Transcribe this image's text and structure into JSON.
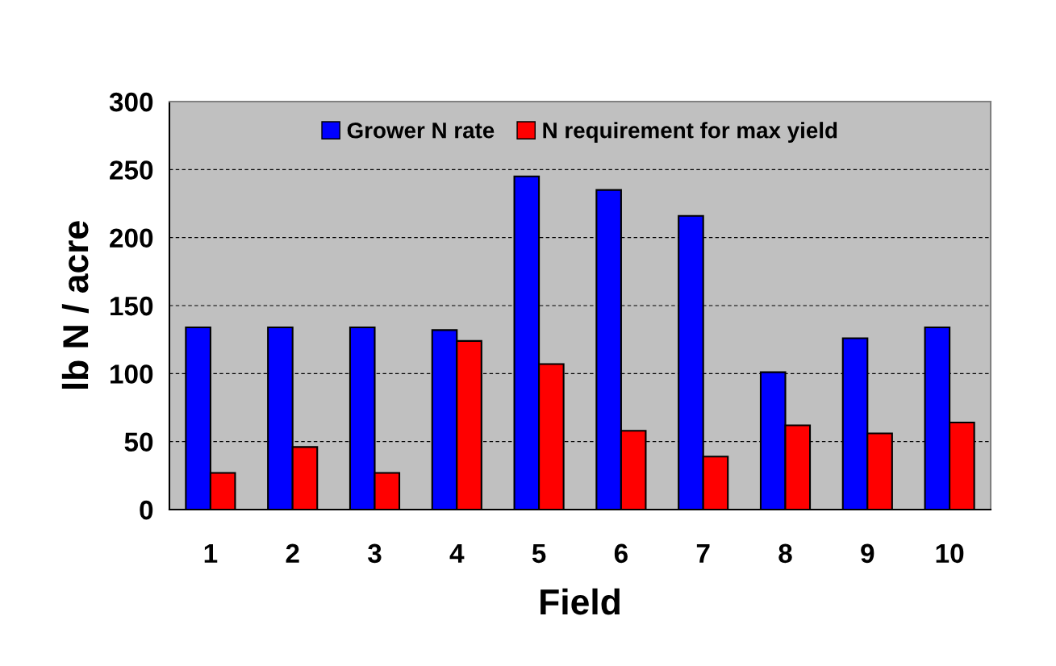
{
  "chart_data": {
    "type": "bar",
    "xlabel": "Field",
    "ylabel": "lb N / acre",
    "categories": [
      "1",
      "2",
      "3",
      "4",
      "5",
      "6",
      "7",
      "8",
      "9",
      "10"
    ],
    "series": [
      {
        "name": "Grower N rate",
        "color": "#0000ff",
        "values": [
          134,
          134,
          134,
          132,
          245,
          235,
          216,
          101,
          126,
          134
        ]
      },
      {
        "name": "N requirement for max yield",
        "color": "#ff0000",
        "values": [
          27,
          46,
          27,
          124,
          107,
          58,
          39,
          62,
          56,
          64
        ]
      }
    ],
    "ylim": [
      0,
      300
    ],
    "yticks": [
      0,
      50,
      100,
      150,
      200,
      250,
      300
    ],
    "grid": "y",
    "legend": "top"
  }
}
